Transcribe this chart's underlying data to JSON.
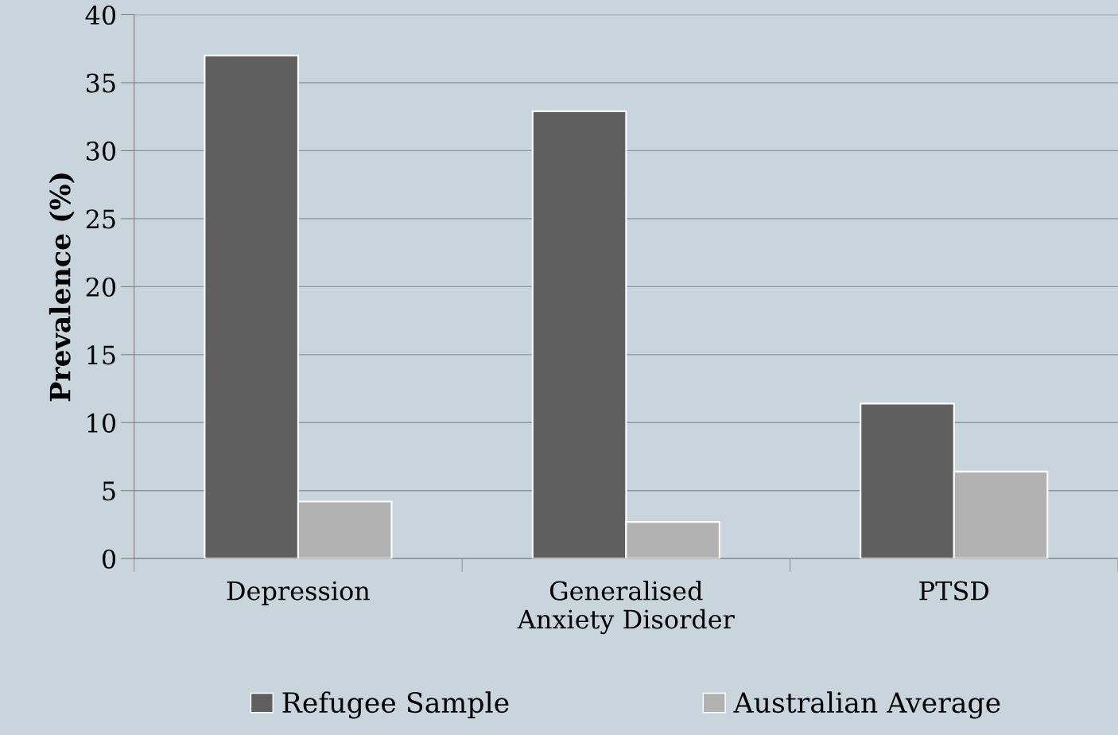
{
  "chart_data": {
    "type": "bar",
    "ylabel": "Prevalence (%)",
    "categories": [
      "Depression",
      "Generalised\nAnxiety Disorder",
      "PTSD"
    ],
    "series": [
      {
        "name": "Refugee Sample",
        "color": "#5f5f5f",
        "values": [
          37.0,
          32.9,
          11.4
        ]
      },
      {
        "name": "Australian Average",
        "color": "#b2b2b2",
        "values": [
          4.2,
          2.7,
          6.4
        ]
      }
    ],
    "ylim": [
      0,
      40
    ],
    "yticks": [
      0,
      5,
      10,
      15,
      20,
      25,
      30,
      35,
      40
    ],
    "grid": "y",
    "legend": "bottom"
  }
}
